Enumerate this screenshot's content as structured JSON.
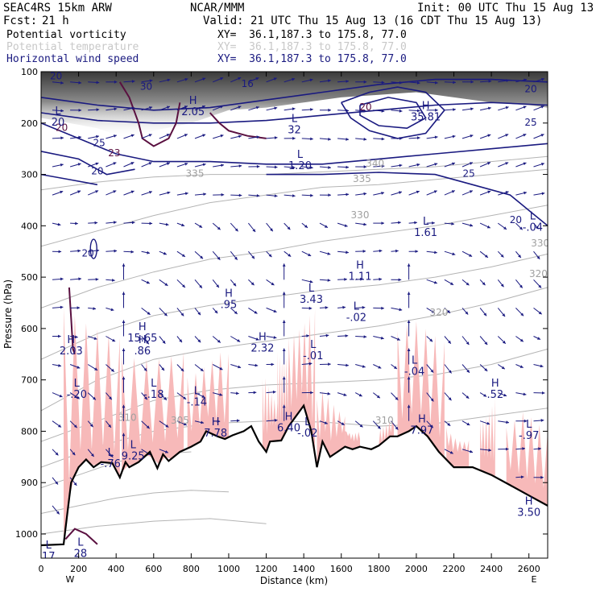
{
  "header": {
    "model": "SEAC4RS 15km ARW",
    "center": "NCAR/MMM",
    "init": "Init: 00 UTC Thu 15 Aug 13",
    "fcst_label": "Fcst:",
    "fcst_value": "21 h",
    "valid": "Valid: 21 UTC Thu 15 Aug 13 (16 CDT Thu 15 Aug 13)"
  },
  "fields": [
    {
      "name": "Potential vorticity",
      "xy": "XY=  36.1,187.3 to 175.8, 77.0",
      "color": "#000000"
    },
    {
      "name": "Potential temperature",
      "xy": "XY=  36.1,187.3 to 175.8, 77.0",
      "color": "#c8c8c8"
    },
    {
      "name": "Horizontal wind speed",
      "xy": "XY=  36.1,187.3 to 175.8, 77.0",
      "color": "#1a1a80"
    }
  ],
  "colors": {
    "wind": "#1a1a80",
    "theta": "#b4b4b4",
    "pv_outline": "#5a1040",
    "pink_fill": "#f7b9b9",
    "terrain": "#000000"
  },
  "chart_data": {
    "type": "contour cross-section",
    "xlabel": "Distance (km)",
    "ylabel": "Pressure (hPa)",
    "xlim": [
      0,
      2700
    ],
    "ylim_pressure": [
      1050,
      100
    ],
    "x_ticks": [
      0,
      200,
      400,
      600,
      800,
      1000,
      1200,
      1400,
      1600,
      1800,
      2000,
      2200,
      2400,
      2600
    ],
    "y_ticks": [
      100,
      200,
      300,
      400,
      500,
      600,
      700,
      800,
      900,
      1000
    ],
    "x_end_labels": {
      "left": "W",
      "right": "E"
    },
    "terrain_pressure_hPa": [
      [
        0,
        1022
      ],
      [
        120,
        1020
      ],
      [
        140,
        960
      ],
      [
        160,
        900
      ],
      [
        200,
        870
      ],
      [
        240,
        855
      ],
      [
        280,
        870
      ],
      [
        320,
        860
      ],
      [
        380,
        862
      ],
      [
        420,
        890
      ],
      [
        450,
        860
      ],
      [
        470,
        870
      ],
      [
        520,
        860
      ],
      [
        580,
        840
      ],
      [
        620,
        872
      ],
      [
        650,
        845
      ],
      [
        680,
        858
      ],
      [
        740,
        840
      ],
      [
        800,
        830
      ],
      [
        850,
        820
      ],
      [
        880,
        800
      ],
      [
        940,
        810
      ],
      [
        980,
        815
      ],
      [
        1020,
        808
      ],
      [
        1080,
        800
      ],
      [
        1120,
        790
      ],
      [
        1160,
        820
      ],
      [
        1200,
        840
      ],
      [
        1220,
        820
      ],
      [
        1280,
        818
      ],
      [
        1320,
        790
      ],
      [
        1360,
        770
      ],
      [
        1400,
        750
      ],
      [
        1440,
        800
      ],
      [
        1470,
        870
      ],
      [
        1500,
        820
      ],
      [
        1540,
        850
      ],
      [
        1580,
        840
      ],
      [
        1620,
        830
      ],
      [
        1660,
        835
      ],
      [
        1700,
        830
      ],
      [
        1760,
        835
      ],
      [
        1800,
        828
      ],
      [
        1860,
        810
      ],
      [
        1900,
        810
      ],
      [
        1960,
        800
      ],
      [
        2000,
        790
      ],
      [
        2060,
        810
      ],
      [
        2120,
        840
      ],
      [
        2200,
        870
      ],
      [
        2300,
        870
      ],
      [
        2400,
        885
      ],
      [
        2500,
        905
      ],
      [
        2600,
        925
      ],
      [
        2700,
        945
      ]
    ],
    "theta_labels": [
      {
        "text": "335",
        "x": 820,
        "p": 305
      },
      {
        "text": "340",
        "x": 1780,
        "p": 285
      },
      {
        "text": "335",
        "x": 1710,
        "p": 315
      },
      {
        "text": "330",
        "x": 1700,
        "p": 385
      },
      {
        "text": "330",
        "x": 2660,
        "p": 440
      },
      {
        "text": "320",
        "x": 2650,
        "p": 500
      },
      {
        "text": "320",
        "x": 2120,
        "p": 575
      },
      {
        "text": "310",
        "x": 460,
        "p": 780
      },
      {
        "text": "305",
        "x": 740,
        "p": 785
      },
      {
        "text": "310",
        "x": 1830,
        "p": 785
      }
    ],
    "wind_contour_labels": [
      {
        "text": "20",
        "x": 80,
        "p": 115
      },
      {
        "text": "25",
        "x": 310,
        "p": 245
      },
      {
        "text": "20",
        "x": 300,
        "p": 300
      },
      {
        "text": "20",
        "x": 250,
        "p": 460
      },
      {
        "text": "25",
        "x": 2280,
        "p": 305
      },
      {
        "text": "20",
        "x": 2530,
        "p": 395
      },
      {
        "text": "20",
        "x": 2610,
        "p": 140
      },
      {
        "text": "25",
        "x": 2610,
        "p": 205
      },
      {
        "text": "16",
        "x": 1100,
        "p": 130
      },
      {
        "text": "30",
        "x": 560,
        "p": 135
      }
    ],
    "pv_contour_labels": [
      {
        "text": "20",
        "x": 110,
        "p": 215
      },
      {
        "text": "23",
        "x": 390,
        "p": 265
      },
      {
        "text": "20",
        "x": 1730,
        "p": 175
      }
    ],
    "highs_lows": [
      {
        "type": "L",
        "value": "20",
        "x": 90,
        "p": 205
      },
      {
        "type": "H",
        "value": "2.05",
        "x": 810,
        "p": 185
      },
      {
        "type": "L",
        "value": "32",
        "x": 1350,
        "p": 220
      },
      {
        "type": "L",
        "value": "1.20",
        "x": 1380,
        "p": 290
      },
      {
        "type": "H",
        "value": "35.81",
        "x": 2050,
        "p": 195
      },
      {
        "type": "L",
        "value": "1.61",
        "x": 2050,
        "p": 420
      },
      {
        "type": "L",
        "value": "-.04",
        "x": 2620,
        "p": 410
      },
      {
        "type": "H",
        "value": "1.11",
        "x": 1700,
        "p": 505
      },
      {
        "type": "L",
        "value": "3.43",
        "x": 1440,
        "p": 550
      },
      {
        "type": "H",
        "value": ".95",
        "x": 1000,
        "p": 560
      },
      {
        "type": "L",
        "value": "-.02",
        "x": 1680,
        "p": 585
      },
      {
        "type": "H",
        "value": "15.65",
        "x": 540,
        "p": 625
      },
      {
        "type": "H",
        "value": ".86",
        "x": 540,
        "p": 650
      },
      {
        "type": "H",
        "value": "2.03",
        "x": 160,
        "p": 650
      },
      {
        "type": "H",
        "value": "2.32",
        "x": 1180,
        "p": 645
      },
      {
        "type": "L",
        "value": "-.01",
        "x": 1450,
        "p": 660
      },
      {
        "type": "L",
        "value": "-.04",
        "x": 1990,
        "p": 690
      },
      {
        "type": "L",
        "value": "-.20",
        "x": 190,
        "p": 735
      },
      {
        "type": "L",
        "value": "-.18",
        "x": 600,
        "p": 735
      },
      {
        "type": "H",
        "value": ".52",
        "x": 2420,
        "p": 735
      },
      {
        "type": "L",
        "value": "-.14",
        "x": 830,
        "p": 750
      },
      {
        "type": "H",
        "value": "7.78",
        "x": 930,
        "p": 810
      },
      {
        "type": "H",
        "value": "6.40",
        "x": 1320,
        "p": 800
      },
      {
        "type": "L",
        "value": "-.02",
        "x": 1420,
        "p": 810
      },
      {
        "type": "H",
        "value": "7.97",
        "x": 2030,
        "p": 805
      },
      {
        "type": "L",
        "value": "-.97",
        "x": 2600,
        "p": 815
      },
      {
        "type": "L",
        "value": "9.25",
        "x": 490,
        "p": 855
      },
      {
        "type": "L",
        "value": "-.76",
        "x": 370,
        "p": 870
      },
      {
        "type": "H",
        "value": "3.50",
        "x": 2600,
        "p": 965
      },
      {
        "type": "L",
        "value": "28",
        "x": 210,
        "p": 1045
      },
      {
        "type": "L",
        "value": "17",
        "x": 40,
        "p": 1050
      }
    ]
  }
}
